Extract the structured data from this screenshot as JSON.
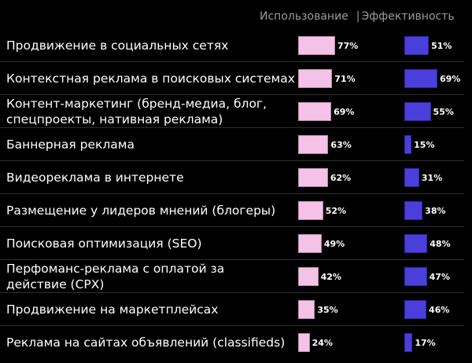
{
  "chart_data": {
    "type": "bar",
    "orientation": "horizontal",
    "legend": [
      "Использование",
      "Эффективность"
    ],
    "legend_placement": "top-right",
    "colors": {
      "Использование": "#f5c2e7",
      "Эффективность": "#4b3fdc"
    },
    "categories": [
      "Продвижение в социальных сетях",
      "Контекстная реклама в поисковых системах",
      "Контент-маркетинг (бренд-медиа, блог, спецпроекты, нативная реклама)",
      "Баннерная реклама",
      "Видеореклама в интернете",
      "Размещение у лидеров мнений (блогеры)",
      "Поисковая оптимизация (SEO)",
      "Перфоманс-реклама с оплатой за действие (CPX)",
      "Продвижение на маркетплейсах",
      "Реклама на сайтах объявлений (classifieds)"
    ],
    "series": [
      {
        "name": "Использование",
        "values": [
          77,
          71,
          69,
          63,
          62,
          52,
          49,
          42,
          35,
          24
        ]
      },
      {
        "name": "Эффективность",
        "values": [
          51,
          69,
          55,
          15,
          31,
          38,
          48,
          47,
          46,
          17
        ]
      }
    ],
    "unit": "%",
    "grid": false
  }
}
